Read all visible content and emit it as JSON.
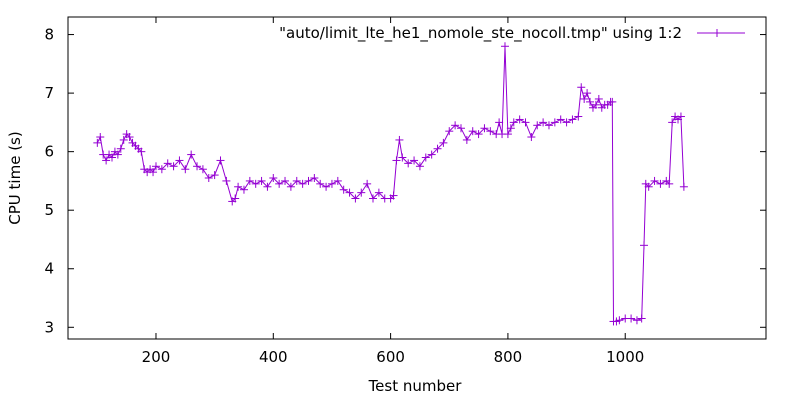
{
  "chart_data": {
    "type": "line",
    "title": "",
    "xlabel": "Test number",
    "ylabel": "CPU time (s)",
    "xlim": [
      50,
      1240
    ],
    "ylim": [
      2.8,
      8.3
    ],
    "x_ticks": [
      200,
      400,
      600,
      800,
      1000
    ],
    "y_ticks": [
      3,
      4,
      5,
      6,
      7,
      8
    ],
    "grid": false,
    "legend": "top-right",
    "series": [
      {
        "name": "\"auto/limit_lte_he1_nomole_ste_nocoll.tmp\" using 1:2",
        "color": "#9400d3",
        "marker": "plus",
        "x": [
          100,
          105,
          110,
          115,
          120,
          125,
          130,
          135,
          140,
          145,
          150,
          155,
          160,
          165,
          170,
          175,
          180,
          185,
          190,
          195,
          200,
          210,
          220,
          230,
          240,
          250,
          260,
          270,
          280,
          290,
          300,
          310,
          320,
          330,
          335,
          340,
          350,
          360,
          370,
          380,
          390,
          400,
          410,
          420,
          430,
          440,
          450,
          460,
          470,
          480,
          490,
          500,
          510,
          520,
          530,
          540,
          550,
          560,
          570,
          580,
          590,
          600,
          605,
          610,
          615,
          620,
          630,
          640,
          650,
          660,
          670,
          680,
          690,
          700,
          710,
          720,
          730,
          740,
          750,
          760,
          770,
          780,
          785,
          790,
          795,
          800,
          805,
          810,
          820,
          830,
          840,
          850,
          860,
          870,
          880,
          890,
          900,
          910,
          920,
          925,
          930,
          935,
          940,
          945,
          950,
          955,
          960,
          965,
          970,
          975,
          978,
          980,
          985,
          990,
          1000,
          1010,
          1020,
          1028,
          1032,
          1035,
          1040,
          1050,
          1060,
          1070,
          1075,
          1080,
          1085,
          1090,
          1095,
          1100
        ],
        "y": [
          6.15,
          6.25,
          5.95,
          5.85,
          5.95,
          5.9,
          6.0,
          5.95,
          6.05,
          6.2,
          6.3,
          6.25,
          6.15,
          6.1,
          6.05,
          6.0,
          5.7,
          5.65,
          5.7,
          5.65,
          5.75,
          5.7,
          5.8,
          5.75,
          5.85,
          5.7,
          5.95,
          5.75,
          5.7,
          5.55,
          5.6,
          5.85,
          5.5,
          5.15,
          5.2,
          5.4,
          5.35,
          5.5,
          5.45,
          5.5,
          5.4,
          5.55,
          5.45,
          5.5,
          5.4,
          5.5,
          5.45,
          5.5,
          5.55,
          5.45,
          5.4,
          5.45,
          5.5,
          5.35,
          5.3,
          5.2,
          5.3,
          5.45,
          5.2,
          5.3,
          5.2,
          5.2,
          5.25,
          5.85,
          6.2,
          5.9,
          5.8,
          5.85,
          5.75,
          5.9,
          5.95,
          6.05,
          6.15,
          6.35,
          6.45,
          6.4,
          6.2,
          6.35,
          6.3,
          6.4,
          6.35,
          6.3,
          6.5,
          6.3,
          7.8,
          6.3,
          6.4,
          6.5,
          6.55,
          6.5,
          6.25,
          6.45,
          6.5,
          6.45,
          6.5,
          6.55,
          6.5,
          6.55,
          6.6,
          7.1,
          6.9,
          7.0,
          6.85,
          6.75,
          6.8,
          6.9,
          6.75,
          6.8,
          6.8,
          6.85,
          6.85,
          3.1,
          3.1,
          3.12,
          3.15,
          3.15,
          3.12,
          3.15,
          4.4,
          5.45,
          5.4,
          5.5,
          5.45,
          5.5,
          5.45,
          6.5,
          6.6,
          6.55,
          6.6,
          5.4
        ]
      }
    ]
  }
}
